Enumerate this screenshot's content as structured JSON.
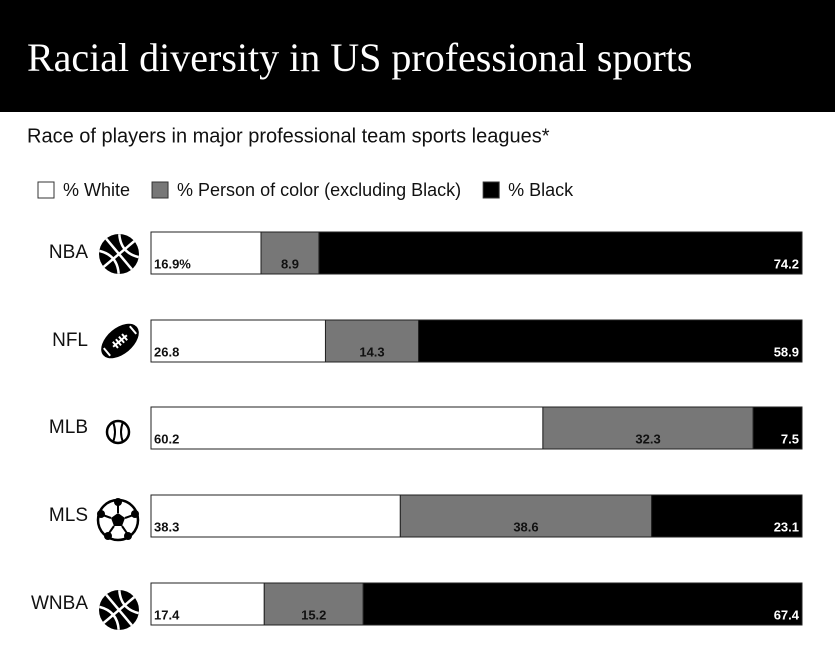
{
  "chart_data": {
    "type": "stacked-bar-horizontal",
    "title": "Racial diversity in US professional sports",
    "subtitle": "Race of players in major professional team sports leagues*",
    "categories": [
      "NBA",
      "NFL",
      "MLB",
      "MLS",
      "WNBA"
    ],
    "series": [
      {
        "name": "% White",
        "color": "#ffffff",
        "values": [
          16.9,
          26.8,
          60.2,
          38.3,
          17.4
        ],
        "value_labels": [
          "16.9%",
          "26.8",
          "60.2",
          "38.3",
          "17.4"
        ]
      },
      {
        "name": "% Person of color (excluding Black)",
        "color": "#777777",
        "values": [
          8.9,
          14.3,
          32.3,
          38.6,
          15.2
        ]
      },
      {
        "name": "% Black",
        "color": "#000000",
        "values": [
          74.2,
          58.9,
          7.5,
          23.1,
          67.4
        ]
      }
    ]
  }
}
